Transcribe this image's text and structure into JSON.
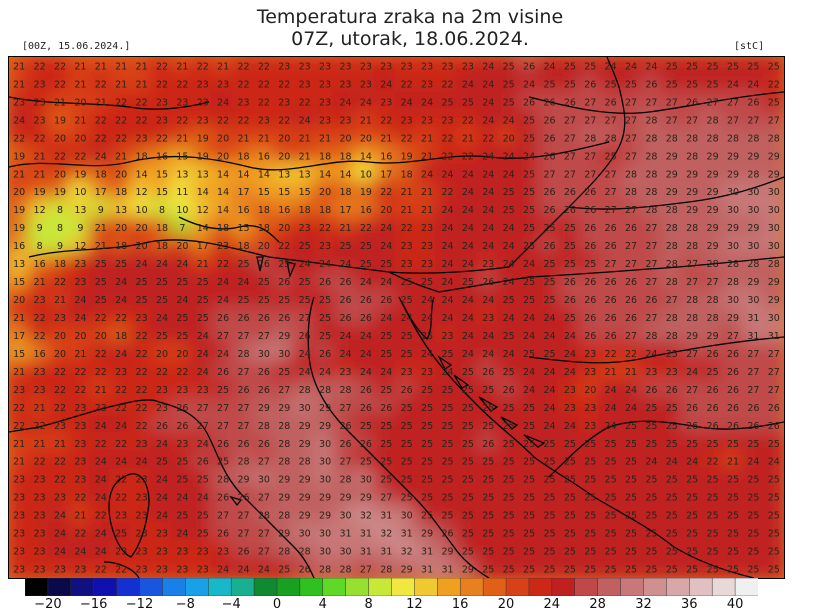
{
  "title_line1": "Temperatura zraka na 2m visine",
  "title_line2": "07Z, utorak, 18.06.2024.",
  "run_label": "[00Z, 15.06.2024.]",
  "unit_label": "[stC]",
  "colorbar": {
    "ticks": [
      "−20",
      "−16",
      "−12",
      "−8",
      "−4",
      "0",
      "4",
      "8",
      "12",
      "16",
      "20",
      "24",
      "28",
      "32",
      "36",
      "40"
    ],
    "min": -22,
    "max": 42,
    "step": 2,
    "colors": [
      "#000000",
      "#0a0a4a",
      "#101080",
      "#1010b0",
      "#1530d0",
      "#1a55e0",
      "#1a80e8",
      "#19a0e6",
      "#18b8c8",
      "#18b090",
      "#108a30",
      "#18a020",
      "#30c020",
      "#60d828",
      "#98e030",
      "#c8e838",
      "#f0e840",
      "#f0c830",
      "#f0a020",
      "#e88020",
      "#e06018",
      "#d84018",
      "#cc2818",
      "#c02020",
      "#c04848",
      "#c06060",
      "#c87878",
      "#d09090",
      "#d8a8a8",
      "#e0c0c0",
      "#e8d8d8",
      "#f0f0f0"
    ]
  },
  "map": {
    "grid_values": [
      "21 22 22 21 21 21 21 22 21 22 21 22 22 23 23 23 23 23 23 23 23 23 23 24 25 26 24 25 25 24 24 24 25 25 25 25 25 25",
      "21 23 22 21 22 21 21 22 22 23 23 22 22 22 23 23 23 23 24 22 23 22 24 24 25 24 25 25 26 25 25 26 25 25 25 24 24 22",
      "23 23 21 20 21 22 22 23 23 23 24 23 22 23 22 23 24 24 23 24 24 25 25 24 25 26 26 26 27 26 27 27 27 26 27 27 26 25",
      "24 23 19 21 22 22 22 23 22 23 22 22 23 22 24 23 23 21 22 23 23 23 22 24 24 25 26 27 27 27 27 28 27 27 28 27 27 27",
      "22 22 20 20 22 22 23 22 21 19 20 21 21 20 21 21 20 20 21 22 21 22 21 22 20 25 26 27 28 28 27 28 28 28 28 28 28 28",
      "19 21 22 22 24 21 18 16 15 19 20 18 16 20 21 18 18 14 16 19 21 22 22 24 24 24 26 27 27 25 27 28 29 28 29 29 29 29",
      "21 21 20 19 18 20 14 15 13 13 14 14 14 13 13 14 14 10 17 18 24 24 24 24 24 25 27 27 27 27 28 28 29 29 29 29 28 29",
      "20 19 19 10 17 18 12 15 11 14 14 17 15 15 15 20 18 19 22 21 21 22 24 24 25 25 26 26 26 27 28 28 29 29 29 30 30 30",
      "19 12 8 13 9 13 10 8 10 12 14 16 18 16 18 18 17 16 20 21 21 24 24 24 25 25 26 26 26 27 27 28 28 29 29 30 30 30",
      "19 9 8 9 21 20 20 18 7 14 18 15 18 20 23 22 21 22 24 22 23 24 24 24 24 25 25 25 26 26 26 27 28 28 29 29 29 30",
      "16 8 9 12 21 18 20 18 20 17 23 18 20 22 25 23 25 25 24 23 23 24 24 24 24 25 26 25 26 26 27 27 28 28 29 30 30 30",
      "13 16 18 23 25 25 24 24 24 21 22 25 26 25 24 24 24 25 25 23 23 24 24 23 24 24 25 25 25 27 27 27 28 27 28 28 28 28",
      "15 21 22 23 25 24 25 25 25 25 24 24 25 26 25 26 26 24 24 25 25 24 25 26 24 25 25 26 26 26 26 27 28 27 27 28 29 29",
      "20 23 21 24 25 24 25 25 24 25 24 25 25 25 25 25 26 26 26 25 24 24 24 24 25 25 25 26 26 26 26 26 27 28 28 30 30 29",
      "21 22 23 24 22 22 23 24 25 25 26 26 26 26 27 25 26 26 24 24 24 24 24 23 24 24 24 25 26 26 26 27 28 28 28 29 31 30",
      "17 22 20 20 20 18 22 25 25 24 27 27 27 29 26 25 24 24 25 25 25 23 24 24 25 24 24 24 26 26 27 28 28 29 29 27 31 31",
      "15 16 20 21 22 24 22 20 20 24 24 28 30 30 24 26 24 24 25 25 24 25 24 24 24 25 25 24 23 22 22 24 25 27 26 26 27 27",
      "21 23 22 22 22 23 22 22 22 24 26 27 26 25 24 24 23 24 24 23 23 24 25 26 25 24 24 24 23 21 21 23 23 24 25 26 27 27",
      "23 23 22 22 21 22 22 23 23 23 25 26 26 27 28 28 28 26 25 26 25 25 25 25 26 24 24 23 20 24 24 26 26 27 26 26 27 27",
      "22 21 22 23 23 22 22 23 26 27 27 27 29 29 30 29 27 26 26 25 25 25 25 25 25 25 24 23 23 24 24 25 25 26 26 26 26 26",
      "22 22 23 23 24 24 22 26 26 27 27 27 28 28 29 29 26 25 25 25 25 25 25 25 25 25 24 24 23 24 25 25 25 26 26 26 26 26",
      "21 21 21 23 22 22 23 24 23 24 26 26 26 28 29 30 26 26 25 25 25 25 25 26 25 25 25 25 25 25 25 25 25 25 25 25 25 25",
      "21 22 22 23 24 24 24 25 25 26 25 28 27 28 28 30 27 25 25 25 25 25 25 25 25 25 25 25 25 25 25 24 24 24 22 21 24 24",
      "23 23 22 23 24 22 23 24 25 25 28 29 30 29 29 30 28 30 25 25 25 25 25 25 25 25 25 25 25 25 25 25 25 25 25 25 25 25",
      "23 23 23 22 24 22 23 24 24 24 26 26 27 29 29 29 29 29 27 25 25 25 25 25 25 25 25 25 25 25 25 25 25 25 25 25 25 25",
      "23 23 24 21 22 23 23 24 25 25 27 27 28 28 29 29 30 32 31 30 25 25 25 25 25 25 25 25 25 25 25 25 25 25 25 25 25 25",
      "23 23 24 22 24 25 23 23 24 25 26 27 27 29 30 30 31 31 32 31 29 26 25 25 25 25 25 25 25 25 25 25 25 25 25 25 25 25",
      "23 23 24 24 24 23 23 23 23 23 23 26 27 28 28 30 30 31 31 32 31 29 25 25 25 25 25 25 25 25 25 25 25 25 25 25 25 25",
      "23 23 23 23 22 22 23 23 23 23 24 24 24 25 26 28 28 27 28 29 31 31 29 25 25 25 25 25 25 25 25 25 25 25 25 25 25 25"
    ]
  }
}
